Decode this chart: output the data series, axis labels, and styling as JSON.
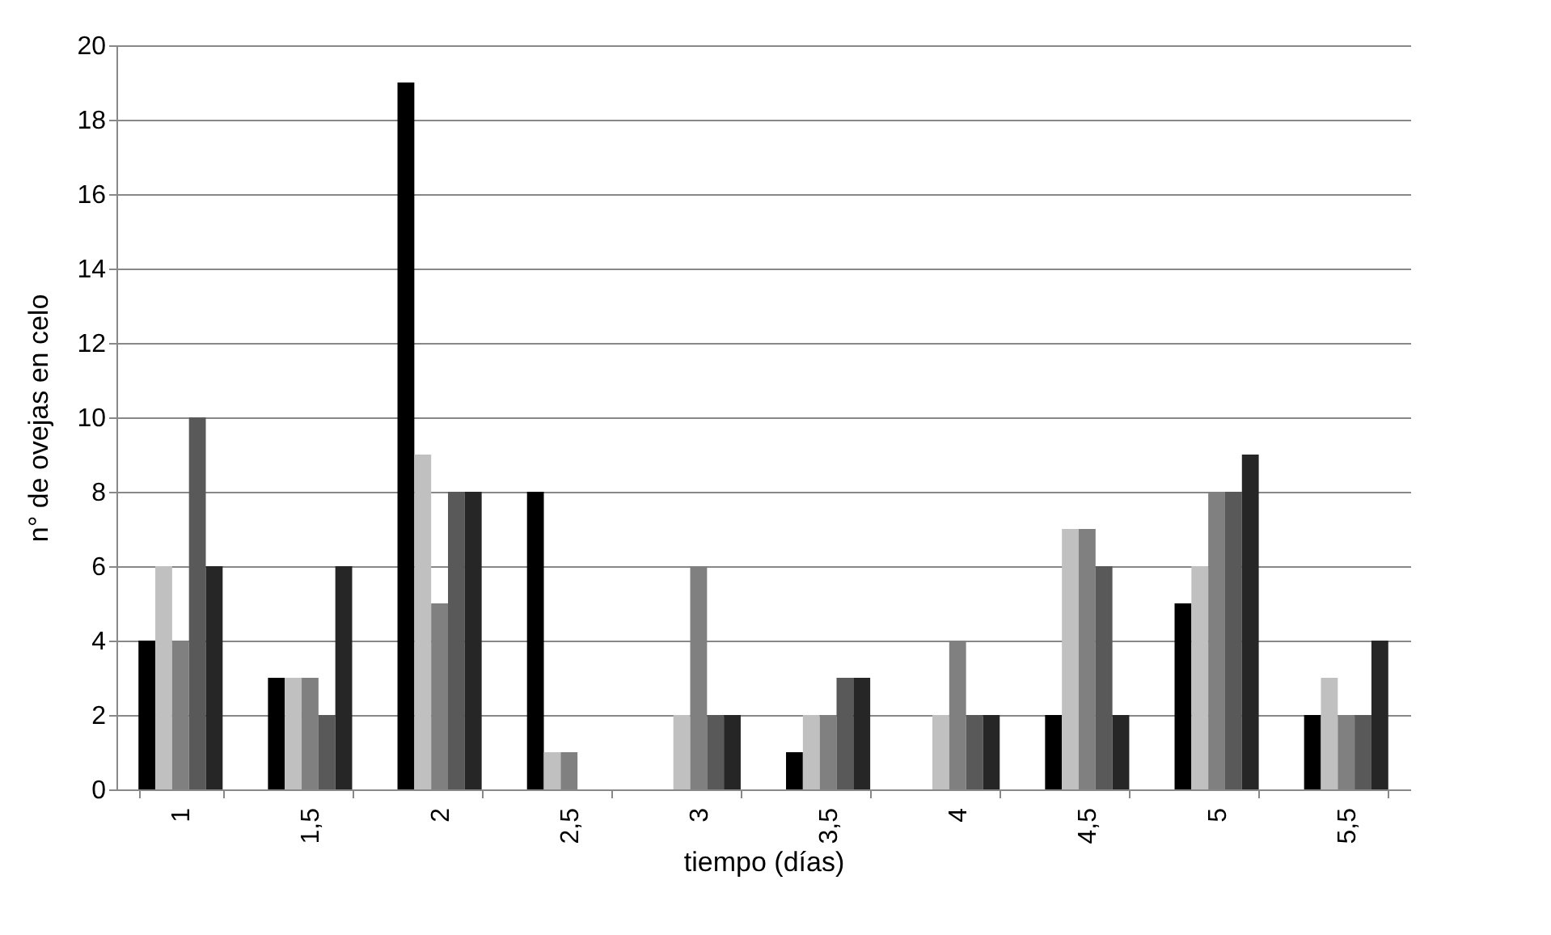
{
  "chart_data": {
    "type": "bar",
    "xlabel": "tiempo (días)",
    "ylabel": "n° de ovejas en celo",
    "categories": [
      "1",
      "1,5",
      "2",
      "2,5",
      "3",
      "3,5",
      "4",
      "4,5",
      "5",
      "5,5"
    ],
    "series": [
      {
        "color": "#000000",
        "values": [
          4,
          3,
          19,
          8,
          0,
          1,
          0,
          2,
          5,
          2
        ]
      },
      {
        "color": "#c0c0c0",
        "values": [
          6,
          3,
          9,
          1,
          2,
          2,
          2,
          7,
          6,
          3
        ]
      },
      {
        "color": "#808080",
        "values": [
          4,
          3,
          5,
          1,
          6,
          2,
          4,
          7,
          8,
          2
        ]
      },
      {
        "color": "#595959",
        "values": [
          10,
          2,
          8,
          0,
          2,
          3,
          2,
          6,
          8,
          2
        ]
      },
      {
        "color": "#262626",
        "values": [
          6,
          6,
          8,
          0,
          2,
          3,
          2,
          2,
          9,
          4
        ]
      }
    ],
    "ylim": [
      0,
      20
    ],
    "yticks": [
      0,
      2,
      4,
      6,
      8,
      10,
      12,
      14,
      16,
      18,
      20
    ],
    "grid": "y",
    "legend": false
  }
}
